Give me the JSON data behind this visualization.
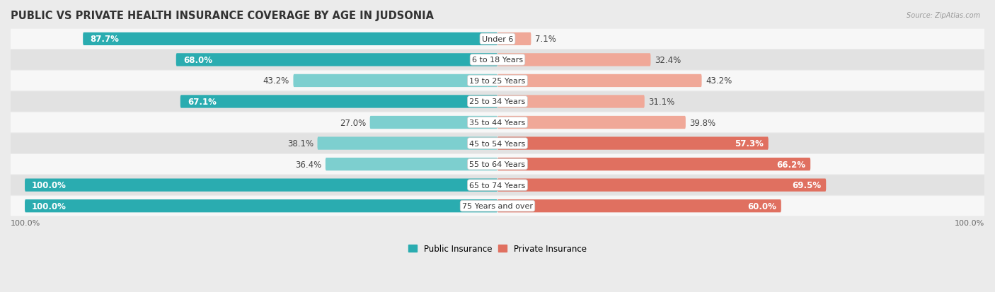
{
  "title": "PUBLIC VS PRIVATE HEALTH INSURANCE COVERAGE BY AGE IN JUDSONIA",
  "source": "Source: ZipAtlas.com",
  "categories": [
    "Under 6",
    "6 to 18 Years",
    "19 to 25 Years",
    "25 to 34 Years",
    "35 to 44 Years",
    "45 to 54 Years",
    "55 to 64 Years",
    "65 to 74 Years",
    "75 Years and over"
  ],
  "public_values": [
    87.7,
    68.0,
    43.2,
    67.1,
    27.0,
    38.1,
    36.4,
    100.0,
    100.0
  ],
  "private_values": [
    7.1,
    32.4,
    43.2,
    31.1,
    39.8,
    57.3,
    66.2,
    69.5,
    60.0
  ],
  "public_color_dark": "#2aacb0",
  "public_color_light": "#7dcfcf",
  "private_color_dark": "#e07060",
  "private_color_light": "#f0a898",
  "bg_color": "#ebebeb",
  "row_bg_light": "#f7f7f7",
  "row_bg_dark": "#e2e2e2",
  "bar_height": 0.62,
  "max_value": 100.0,
  "legend_labels": [
    "Public Insurance",
    "Private Insurance"
  ],
  "title_fontsize": 10.5,
  "label_fontsize": 8.5,
  "cat_fontsize": 8,
  "pub_dark_threshold": 60,
  "priv_dark_threshold": 55
}
